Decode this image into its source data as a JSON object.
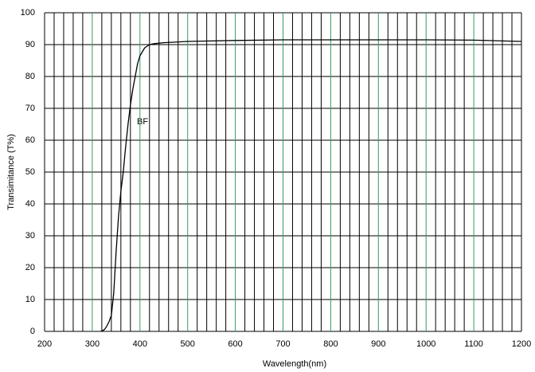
{
  "chart_data": {
    "type": "line",
    "x_label": "Wavelength(nm)",
    "y_label": "Transimitance (T%)",
    "annotation": "BF",
    "xlim": [
      200,
      1200
    ],
    "ylim": [
      0,
      100
    ],
    "xticks": [
      200,
      300,
      400,
      500,
      600,
      700,
      800,
      900,
      1000,
      1100,
      1200
    ],
    "yticks": [
      0,
      10,
      20,
      30,
      40,
      50,
      60,
      70,
      80,
      90,
      100
    ],
    "grid": true,
    "major_grid_color": "#2e9e5e",
    "minor_grid_color": "#000000",
    "x_minor_divisions": 5,
    "series": [
      {
        "color": "#000000",
        "x": [
          318,
          325,
          330,
          335,
          340,
          345,
          350,
          355,
          360,
          365,
          370,
          375,
          380,
          385,
          390,
          395,
          400,
          410,
          420,
          430,
          450,
          500,
          600,
          700,
          800,
          900,
          1000,
          1100,
          1200
        ],
        "values": [
          0,
          0.5,
          1.5,
          3,
          5,
          12,
          25,
          36,
          44,
          50,
          58,
          65,
          71,
          76,
          80,
          84,
          86.5,
          89,
          90,
          90.3,
          90.6,
          91,
          91.3,
          91.5,
          91.5,
          91.5,
          91.5,
          91.4,
          91
        ]
      }
    ]
  }
}
